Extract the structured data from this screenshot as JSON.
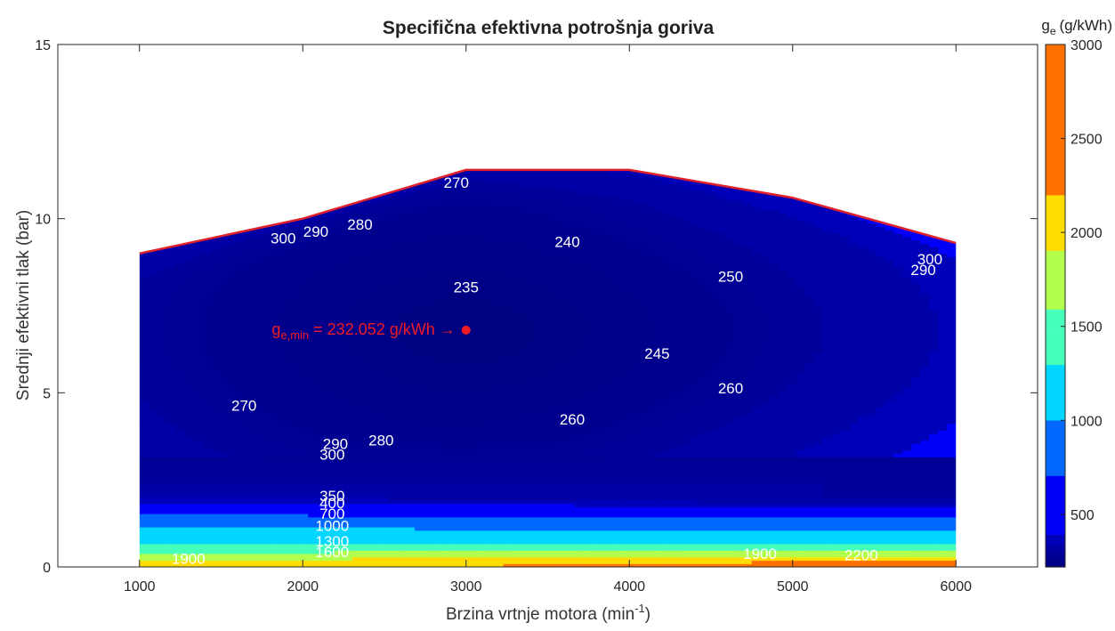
{
  "chart_data": {
    "type": "heatmap",
    "subtype": "filled-contour",
    "title": "Specifična efektivna potrošnja goriva",
    "xlabel": "Brzina vrtnje motora (min",
    "xlabel_sup": "-1",
    "xlabel_end": ")",
    "ylabel": "Srednji efektivni tlak (bar)",
    "xlim": [
      500,
      6500
    ],
    "ylim": [
      0,
      15
    ],
    "xticks": [
      1000,
      2000,
      3000,
      4000,
      5000,
      6000
    ],
    "yticks": [
      0,
      5,
      10,
      15
    ],
    "grid": false,
    "colormap": "jet",
    "colorbar": {
      "label_main": "g",
      "label_sub": "e",
      "label_unit": "(g/kWh)",
      "limits": [
        220,
        3000
      ],
      "ticks": [
        500,
        1000,
        1500,
        2000,
        2500,
        3000
      ]
    },
    "max_load_curve": {
      "color": "#e0202a",
      "x": [
        1000,
        2000,
        3000,
        4000,
        5000,
        6000
      ],
      "y": [
        9.0,
        10.0,
        11.4,
        11.4,
        10.6,
        9.3
      ]
    },
    "minimum_point": {
      "x": 3000,
      "y": 6.8,
      "label_main": "g",
      "label_sub": "e,min",
      "label_text": " = 232.052 g/kWh →",
      "color": "#ee1c24"
    },
    "contour_levels": [
      235,
      240,
      245,
      250,
      260,
      270,
      280,
      290,
      300,
      350,
      400,
      700,
      1000,
      1300,
      1600,
      1900,
      2200
    ],
    "contour_labels": [
      {
        "text": "235",
        "x": 3000,
        "y": 8.0
      },
      {
        "text": "240",
        "x": 3620,
        "y": 9.3
      },
      {
        "text": "245",
        "x": 4170,
        "y": 6.1
      },
      {
        "text": "250",
        "x": 4620,
        "y": 8.3
      },
      {
        "text": "260",
        "x": 4620,
        "y": 5.1
      },
      {
        "text": "260",
        "x": 3650,
        "y": 4.2
      },
      {
        "text": "270",
        "x": 2940,
        "y": 11.0
      },
      {
        "text": "270",
        "x": 1640,
        "y": 4.6
      },
      {
        "text": "280",
        "x": 2350,
        "y": 9.8
      },
      {
        "text": "280",
        "x": 2480,
        "y": 3.6
      },
      {
        "text": "290",
        "x": 2080,
        "y": 9.6
      },
      {
        "text": "290",
        "x": 2200,
        "y": 3.5
      },
      {
        "text": "290",
        "x": 5800,
        "y": 8.5
      },
      {
        "text": "300",
        "x": 1880,
        "y": 9.4
      },
      {
        "text": "300",
        "x": 2180,
        "y": 3.2
      },
      {
        "text": "300",
        "x": 5840,
        "y": 8.8
      },
      {
        "text": "350",
        "x": 2180,
        "y": 2.0
      },
      {
        "text": "400",
        "x": 2180,
        "y": 1.8
      },
      {
        "text": "700",
        "x": 2180,
        "y": 1.5
      },
      {
        "text": "1000",
        "x": 2180,
        "y": 1.15
      },
      {
        "text": "1300",
        "x": 2180,
        "y": 0.7
      },
      {
        "text": "1600",
        "x": 2180,
        "y": 0.4
      },
      {
        "text": "1900",
        "x": 1300,
        "y": 0.2
      },
      {
        "text": "1900",
        "x": 4800,
        "y": 0.35
      },
      {
        "text": "2200",
        "x": 5420,
        "y": 0.3
      }
    ]
  }
}
